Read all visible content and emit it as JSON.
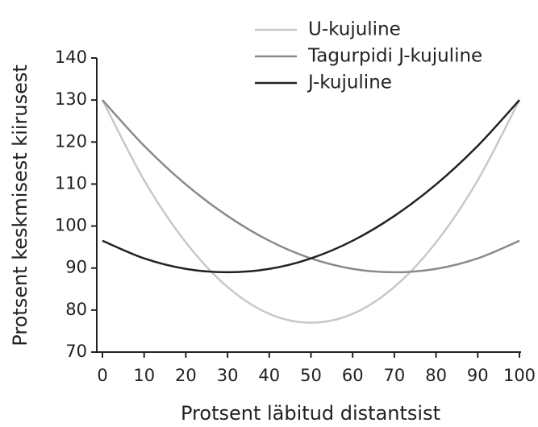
{
  "chart_data": {
    "type": "line",
    "x": [
      0,
      10,
      20,
      30,
      40,
      50,
      60,
      70,
      80,
      90,
      100
    ],
    "series": [
      {
        "name": "U-kujuline",
        "color": "#c8c8c8",
        "values": [
          130,
          110.9,
          96.1,
          85.5,
          79.1,
          77,
          79.1,
          85.5,
          96.1,
          110.9,
          130
        ]
      },
      {
        "name": "Tagurpidi J-kujuline",
        "color": "#8a8a8a",
        "values": [
          130,
          119.1,
          109.9,
          102.4,
          96.5,
          92.3,
          89.8,
          89,
          89.8,
          92.3,
          96.5
        ]
      },
      {
        "name": "J-kujuline",
        "color": "#222222",
        "values": [
          96.5,
          92.3,
          89.8,
          89,
          89.8,
          92.3,
          96.5,
          102.4,
          109.9,
          119.1,
          130
        ]
      }
    ],
    "xlabel": "Protsent läbitud distantsist",
    "ylabel": "Protsent keskmisest kiirusest",
    "xlim": [
      0,
      100
    ],
    "xticks": [
      0,
      10,
      20,
      30,
      40,
      50,
      60,
      70,
      80,
      90,
      100
    ],
    "ylim": [
      70,
      140
    ],
    "yticks": [
      70,
      80,
      90,
      100,
      110,
      120,
      130,
      140
    ],
    "grid": false,
    "legend": "top"
  }
}
